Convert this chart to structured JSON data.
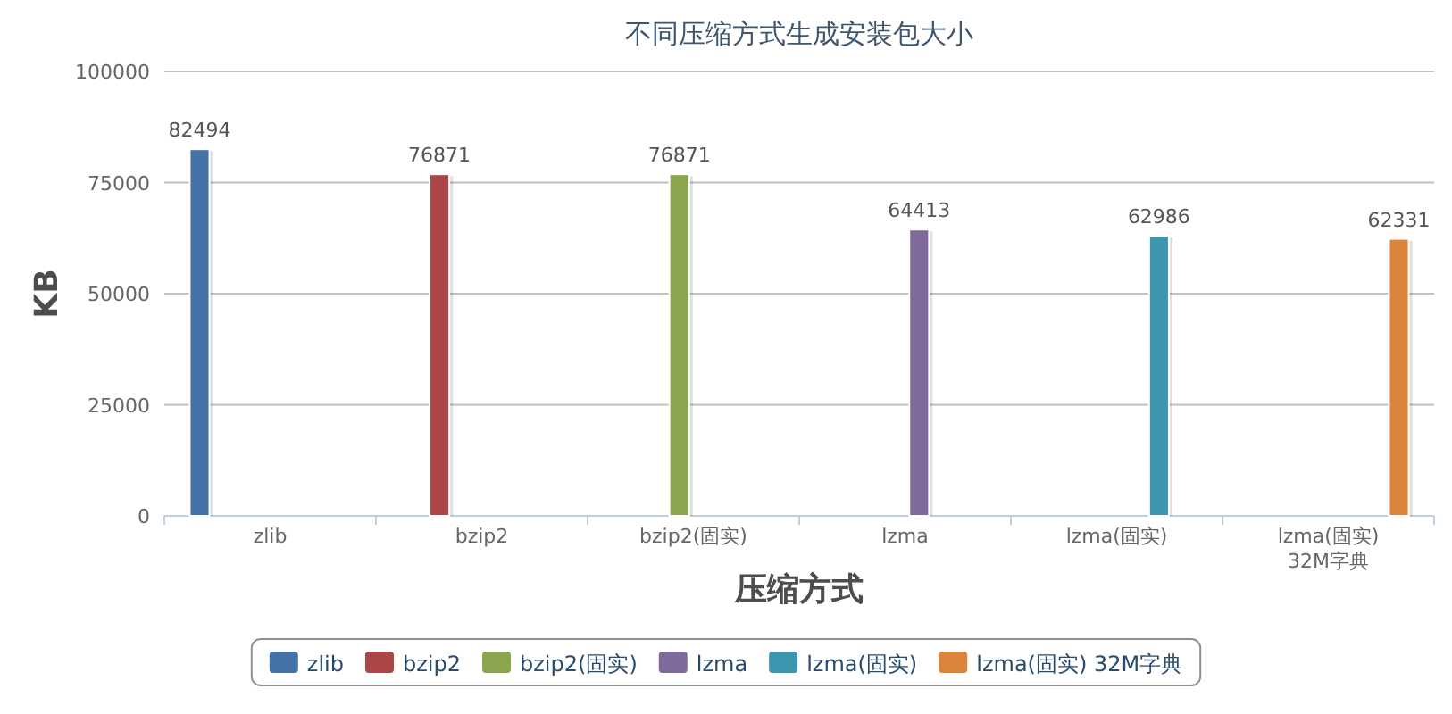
{
  "chart_data": {
    "type": "bar",
    "title": "不同压缩方式生成安装包大小",
    "xlabel": "压缩方式",
    "ylabel": "KB",
    "categories": [
      "zlib",
      "bzip2",
      "bzip2(固实)",
      "lzma",
      "lzma(固实)",
      "lzma(固实) 32M字典"
    ],
    "series": [
      {
        "name": "zlib",
        "color": "#4572a7",
        "values": [
          82494,
          null,
          null,
          null,
          null,
          null
        ]
      },
      {
        "name": "bzip2",
        "color": "#aa4643",
        "values": [
          null,
          76871,
          null,
          null,
          null,
          null
        ]
      },
      {
        "name": "bzip2(固实)",
        "color": "#89a54e",
        "values": [
          null,
          null,
          76871,
          null,
          null,
          null
        ]
      },
      {
        "name": "lzma",
        "color": "#80699b",
        "values": [
          null,
          null,
          null,
          64413,
          null,
          null
        ]
      },
      {
        "name": "lzma(固实)",
        "color": "#3d96ae",
        "values": [
          null,
          null,
          null,
          null,
          62986,
          null
        ]
      },
      {
        "name": "lzma(固实) 32M字典",
        "color": "#db843d",
        "values": [
          null,
          null,
          null,
          null,
          null,
          62331
        ]
      }
    ],
    "ylim": [
      0,
      100000
    ],
    "yticks": [
      0,
      25000,
      50000,
      75000,
      100000
    ],
    "grid": "y",
    "legend": "bottom",
    "data_labels": true
  }
}
